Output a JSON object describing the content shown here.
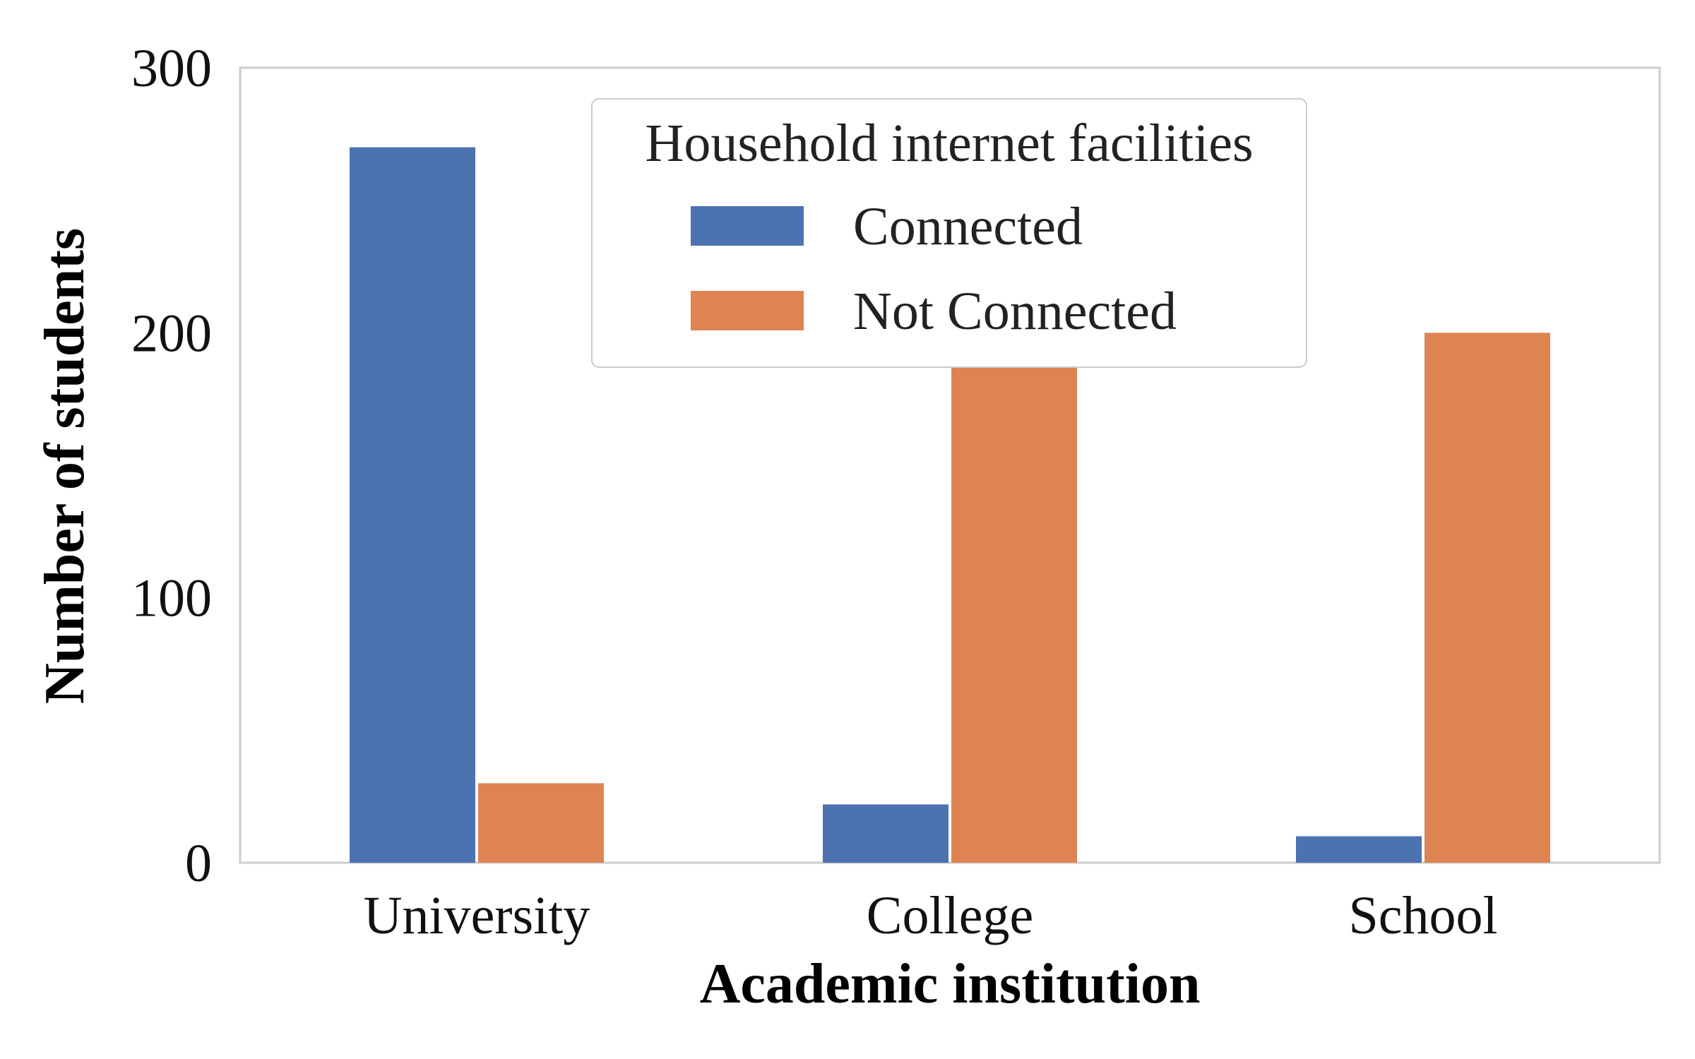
{
  "chart_data": {
    "type": "bar",
    "categories": [
      "University",
      "College",
      "School"
    ],
    "series": [
      {
        "name": "Connected",
        "values": [
          270,
          22,
          10
        ],
        "color": "#4c72b0"
      },
      {
        "name": "Not Connected",
        "values": [
          30,
          188,
          200
        ],
        "color": "#dd8452"
      }
    ],
    "xlabel": "Academic institution",
    "ylabel": "Number of students",
    "ylim": [
      0,
      300
    ],
    "yticks": [
      0,
      100,
      200,
      300
    ],
    "legend": {
      "title": "Household internet facilities",
      "placement": "upper-center"
    },
    "grid": false
  }
}
